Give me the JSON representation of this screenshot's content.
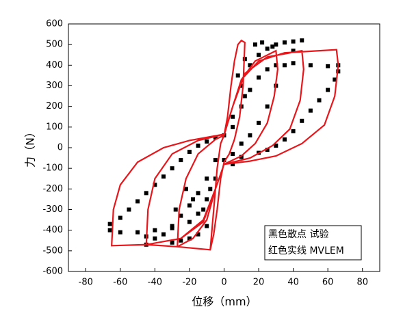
{
  "chart_data": {
    "type": "scatter",
    "x_label": "位移（mm）",
    "y_label": "力（N）",
    "xlim": [
      -90,
      90
    ],
    "xticks": [
      -80,
      -60,
      -40,
      -20,
      0,
      20,
      40,
      60,
      80
    ],
    "ylim": [
      -600,
      600
    ],
    "yticks": [
      -600,
      -500,
      -400,
      -300,
      -200,
      -100,
      0,
      100,
      200,
      300,
      400,
      500,
      600
    ],
    "legend": "bottom right",
    "series": [
      {
        "name": "黑色散点 试验",
        "color": "#000000",
        "mode": "markers",
        "x": [
          -66,
          -66,
          -60,
          -55,
          -50,
          -45,
          -40,
          -35,
          -30,
          -25,
          -20,
          -15,
          -10,
          -5,
          0,
          5,
          10,
          15,
          20,
          25,
          30,
          40,
          50,
          60,
          66,
          66,
          64,
          60,
          55,
          50,
          45,
          40,
          35,
          30,
          25,
          20,
          10,
          0,
          -5,
          -10,
          -15,
          -20,
          -30,
          -40,
          -50,
          -60,
          -40,
          -35,
          -30,
          -25,
          -20,
          -15,
          -10,
          -5,
          5,
          10,
          15,
          20,
          25,
          30,
          35,
          40,
          45,
          40,
          35,
          30,
          25,
          20,
          15,
          10,
          -10,
          -15,
          -20,
          -25,
          -30,
          -45,
          -45,
          5,
          8,
          12,
          18,
          22,
          28,
          12,
          5,
          -8,
          -12,
          -18,
          -22,
          -28
        ],
        "values": [
          -400,
          -370,
          -340,
          -300,
          -260,
          -220,
          -180,
          -140,
          -100,
          -60,
          -20,
          10,
          30,
          50,
          60,
          100,
          200,
          280,
          340,
          380,
          400,
          410,
          400,
          395,
          400,
          370,
          330,
          280,
          230,
          180,
          130,
          80,
          40,
          10,
          -10,
          -25,
          -45,
          -60,
          -150,
          -250,
          -320,
          -360,
          -390,
          -400,
          -410,
          -410,
          -440,
          -420,
          -380,
          -330,
          -280,
          -220,
          -150,
          -60,
          150,
          300,
          400,
          450,
          480,
          500,
          510,
          515,
          520,
          470,
          400,
          300,
          200,
          120,
          60,
          20,
          -380,
          -420,
          -440,
          -450,
          -460,
          -470,
          -430,
          -80,
          350,
          430,
          500,
          510,
          490,
          250,
          -30,
          -200,
          -300,
          -250,
          -200,
          -300
        ]
      },
      {
        "name": "红色实线 MVLEM",
        "color": "#e8161b",
        "mode": "line",
        "x": [
          -8,
          -6,
          -4,
          -2,
          0,
          2,
          4,
          6,
          8,
          10,
          12,
          11,
          9,
          6,
          3,
          0,
          -2,
          -4,
          -6,
          -8,
          -27,
          -26,
          -22,
          -15,
          -5,
          0,
          5,
          10,
          18,
          30,
          31,
          29,
          25,
          18,
          10,
          0,
          -5,
          -10,
          -18,
          -27,
          -45,
          -44,
          -40,
          -30,
          -15,
          0,
          5,
          12,
          25,
          45,
          46,
          44,
          38,
          28,
          15,
          0,
          -5,
          -12,
          -25,
          -45,
          -65,
          -64,
          -60,
          -50,
          -35,
          -20,
          0,
          5,
          10,
          20,
          35,
          65,
          66,
          64,
          58,
          45,
          30,
          15,
          0,
          -5,
          -12,
          -25,
          -45,
          -65
        ],
        "values": [
          -495,
          -300,
          -100,
          20,
          60,
          150,
          300,
          420,
          500,
          520,
          510,
          300,
          150,
          40,
          -30,
          -70,
          -150,
          -300,
          -420,
          -495,
          -480,
          -300,
          -150,
          -30,
          40,
          60,
          200,
          330,
          420,
          470,
          380,
          250,
          120,
          20,
          -40,
          -80,
          -200,
          -350,
          -440,
          -480,
          -470,
          -300,
          -150,
          -30,
          35,
          65,
          200,
          360,
          440,
          470,
          380,
          230,
          90,
          10,
          -50,
          -80,
          -200,
          -360,
          -440,
          -470,
          -475,
          -300,
          -180,
          -70,
          0,
          35,
          65,
          200,
          330,
          420,
          460,
          475,
          400,
          250,
          110,
          20,
          -40,
          -65,
          -80,
          -200,
          -350,
          -440,
          -470,
          -475
        ]
      }
    ]
  }
}
